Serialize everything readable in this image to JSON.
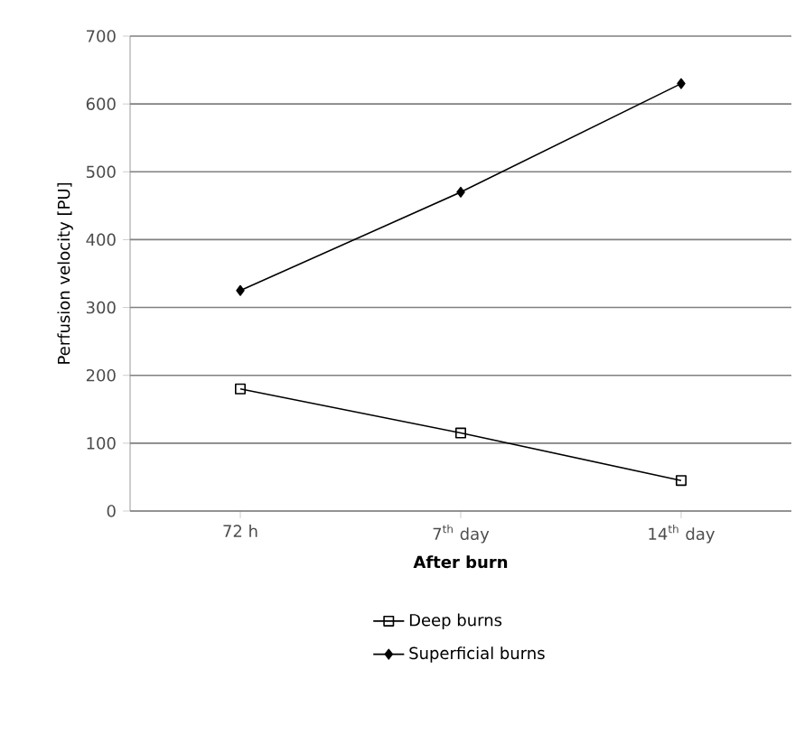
{
  "chart_data": {
    "type": "line",
    "xlabel": "After burn",
    "ylabel": "Perfusion velocity [PU]",
    "categories": [
      "72 h",
      "7$^{th}$ day",
      "14$^{th}$ day"
    ],
    "series": [
      {
        "name": "Deep burns",
        "color": "#000000",
        "marker": "square",
        "values": [
          180,
          115,
          45
        ]
      },
      {
        "name": "Superficial burns",
        "color": "#000000",
        "marker": "diamond",
        "values": [
          325,
          470,
          630
        ]
      }
    ],
    "ylim": [
      0,
      700
    ],
    "yticks": [
      0,
      100,
      200,
      300,
      400,
      500,
      600,
      700
    ],
    "grid": "y",
    "legend": "bottom",
    "line_style": "solid"
  }
}
